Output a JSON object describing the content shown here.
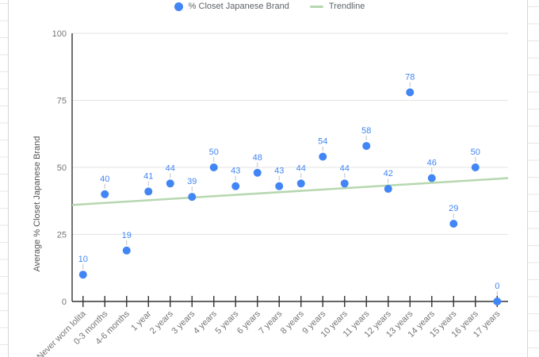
{
  "legend": {
    "series_label": "% Closet Japanese Brand",
    "trendline_label": "Trendline"
  },
  "chart_data": {
    "type": "scatter",
    "title": "",
    "categories": [
      "Never worn lolita",
      "0-3 months",
      "4-6 months",
      "1 year",
      "2 years",
      "3 years",
      "4 years",
      "5 years",
      "6 years",
      "7 years",
      "8 years",
      "9 years",
      "10 years",
      "11 years",
      "12 years",
      "13 years",
      "14 years",
      "15 years",
      "16 years",
      "17 years"
    ],
    "series": [
      {
        "name": "% Closet Japanese Brand",
        "values": [
          10,
          40,
          19,
          41,
          44,
          39,
          50,
          43,
          48,
          43,
          44,
          54,
          44,
          58,
          42,
          78,
          46,
          29,
          50,
          0
        ]
      }
    ],
    "trendline": {
      "name": "Trendline",
      "start_value": 36,
      "end_value": 46
    },
    "xlabel": "",
    "ylabel": "Average % Closet Japanese Brand",
    "ylim": [
      0,
      100
    ],
    "yticks": [
      0,
      25,
      50,
      75,
      100
    ],
    "grid": true,
    "legend_position": "top",
    "data_labels": true,
    "colors": {
      "series": "#4285f4",
      "trendline": "#b6d7b0",
      "gridline": "#e3e3e3",
      "axis": "#333333",
      "tick_label": "#757575",
      "axis_title": "#555555",
      "legend_text": "#5f6368",
      "leader_line": "#c2c2c2"
    }
  }
}
